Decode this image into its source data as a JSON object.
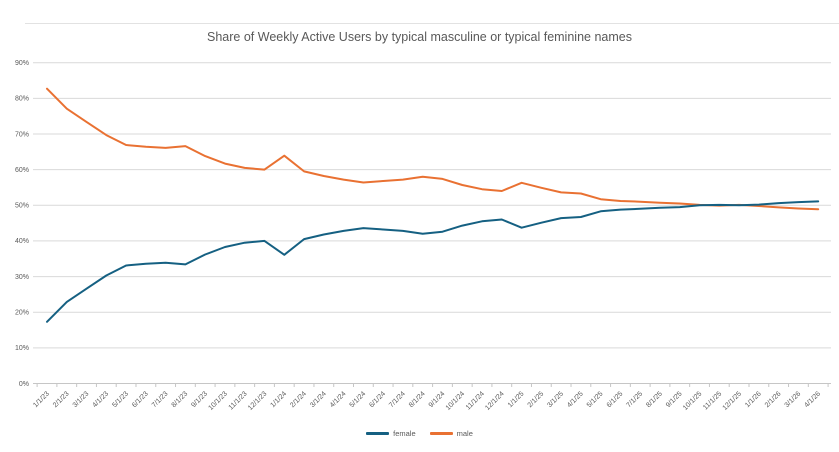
{
  "title": "Share of Weekly Active Users by typical masculine or typical feminine names",
  "colors": {
    "female": "#156082",
    "male": "#E97132",
    "grid": "#D9D9D9",
    "axis": "#C6C6C6",
    "text": "#595959",
    "background": "#FFFFFF"
  },
  "chart_data": {
    "type": "line",
    "title": "Share of Weekly Active Users by typical masculine or typical feminine names",
    "x": [
      "1/1/23",
      "2/1/23",
      "3/1/23",
      "4/1/23",
      "5/1/23",
      "6/1/23",
      "7/1/23",
      "8/1/23",
      "9/1/23",
      "10/1/23",
      "11/1/23",
      "12/1/23",
      "1/1/24",
      "2/1/24",
      "3/1/24",
      "4/1/24",
      "5/1/24",
      "6/1/24",
      "7/1/24",
      "8/1/24",
      "9/1/24",
      "10/1/24",
      "11/1/24",
      "12/1/24",
      "1/1/25",
      "2/1/25",
      "3/1/25",
      "4/1/25",
      "5/1/25",
      "6/1/25",
      "7/1/25",
      "8/1/25",
      "9/1/25",
      "10/1/25",
      "11/1/25",
      "12/1/25",
      "1/1/26",
      "2/1/26",
      "3/1/26",
      "4/1/26"
    ],
    "series": [
      {
        "name": "female",
        "color": "#156082",
        "values": [
          17.3,
          22.9,
          26.6,
          30.3,
          33.1,
          33.6,
          33.9,
          33.4,
          36.2,
          38.3,
          39.5,
          40.0,
          36.1,
          40.5,
          41.8,
          42.8,
          43.6,
          43.2,
          42.8,
          42.0,
          42.6,
          44.3,
          45.5,
          46.0,
          43.7,
          45.1,
          46.4,
          46.7,
          48.3,
          48.8,
          49.0,
          49.3,
          49.5,
          50.0,
          50.1,
          50.0,
          50.2,
          50.6,
          50.9,
          51.1
        ]
      },
      {
        "name": "male",
        "color": "#E97132",
        "values": [
          82.7,
          77.1,
          73.4,
          69.7,
          66.9,
          66.4,
          66.1,
          66.6,
          63.8,
          61.7,
          60.5,
          60.0,
          63.9,
          59.5,
          58.2,
          57.2,
          56.4,
          56.8,
          57.2,
          58.0,
          57.4,
          55.7,
          54.5,
          54.0,
          56.3,
          54.9,
          53.6,
          53.3,
          51.7,
          51.2,
          51.0,
          50.7,
          50.5,
          50.1,
          49.9,
          50.1,
          49.8,
          49.4,
          49.1,
          48.9
        ]
      }
    ],
    "y_ticks": [
      "0%",
      "10%",
      "20%",
      "30%",
      "40%",
      "50%",
      "60%",
      "70%",
      "80%",
      "90%"
    ],
    "ylim": [
      0,
      90
    ],
    "grid": true,
    "legend_position": "bottom"
  }
}
